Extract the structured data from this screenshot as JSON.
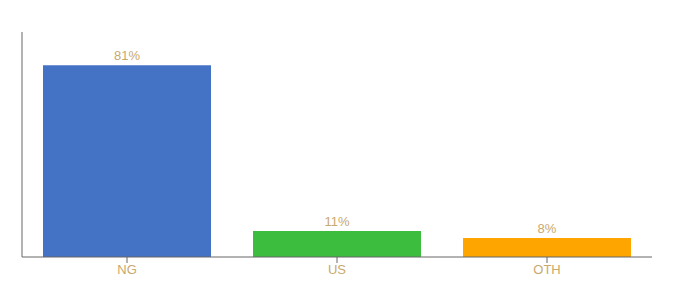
{
  "chart_data": {
    "type": "bar",
    "categories": [
      "NG",
      "US",
      "OTH"
    ],
    "values": [
      81,
      11,
      8
    ],
    "value_labels": [
      "81%",
      "11%",
      "8%"
    ],
    "colors": [
      "#4472C4",
      "#3DBD3D",
      "#FFA500"
    ],
    "ylim": [
      0,
      95
    ],
    "data_labels": true,
    "tick_labels": "x",
    "grid": false
  }
}
